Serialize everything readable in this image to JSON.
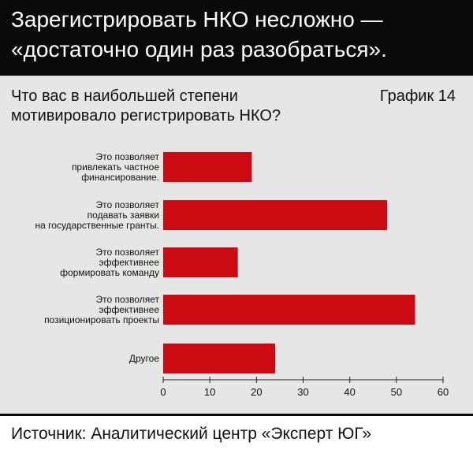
{
  "header": {
    "title_lines": [
      "Зарегистрировать НКО несложно —",
      "«достаточно один раз разобраться»."
    ]
  },
  "question_lines": [
    "Что вас в наибольшей степени",
    "мотивировало регистрировать НКО?"
  ],
  "chart_label": "График 14",
  "source": "Источник: Аналитический центр «Эксперт ЮГ»",
  "colors": {
    "bar": "#cc0a12",
    "header_bg": "#0a0a0a",
    "panel_bg": "#e6e6e6"
  },
  "chart_data": {
    "type": "bar",
    "orientation": "horizontal",
    "categories": [
      [
        "Это позволяет",
        "привлекать частное",
        "финансирование."
      ],
      [
        "Это позволяет",
        "подавать заявки",
        "на государственные гранты."
      ],
      [
        "Это позволяет",
        "эффективнее",
        "формировать команду"
      ],
      [
        "Это позволяет",
        "эффективнее",
        "позиционировать проекты"
      ],
      [
        "Другое"
      ]
    ],
    "values": [
      19,
      48,
      16,
      54,
      24
    ],
    "xlim": [
      0,
      60
    ],
    "xticks": [
      0,
      10,
      20,
      30,
      40,
      50,
      60
    ],
    "grid": false
  }
}
